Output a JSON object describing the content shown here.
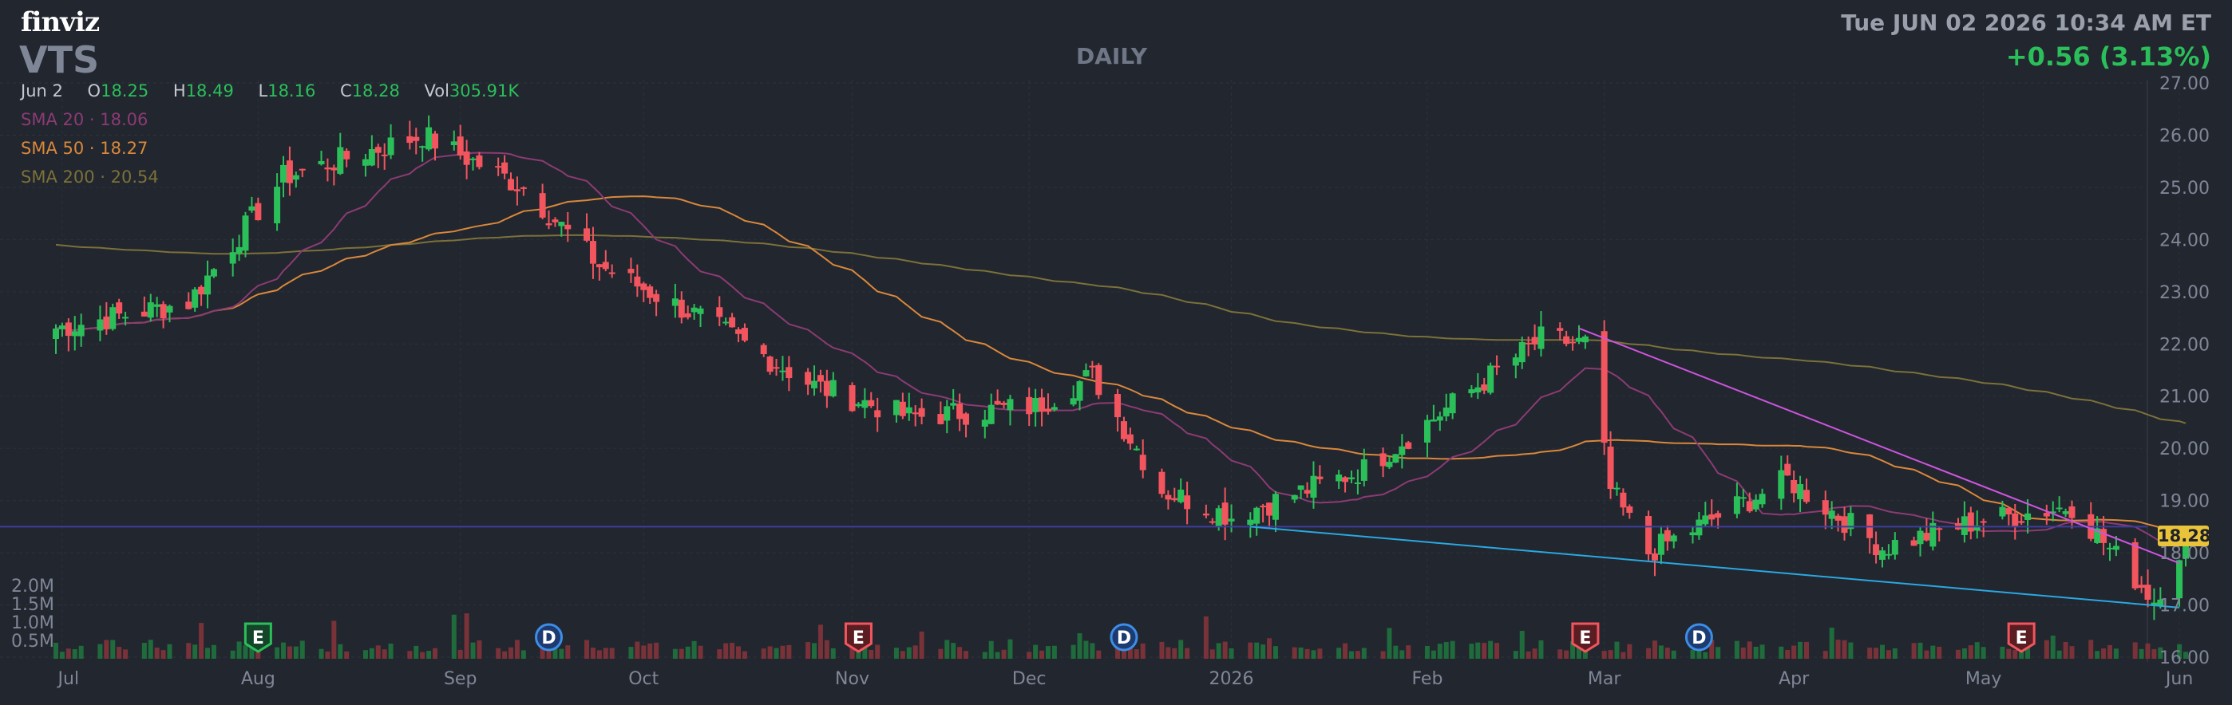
{
  "header": {
    "logo": "finviz",
    "ticker": "VTS",
    "period": "DAILY",
    "datetime": "Tue JUN 02 2026 10:34 AM ET",
    "change": "+0.56 (3.13%)"
  },
  "ohlc": {
    "date": "Jun 2",
    "open_label": "O",
    "open": "18.25",
    "high_label": "H",
    "high": "18.49",
    "low_label": "L",
    "low": "18.16",
    "close_label": "C",
    "close": "18.28",
    "vol_label": "Vol",
    "vol": "305.91K"
  },
  "sma": {
    "sma20": "SMA 20 · 18.06",
    "sma50": "SMA 50 · 18.27",
    "sma200": "SMA 200 · 20.54"
  },
  "price_tag": "18.28",
  "colors": {
    "background": "#22262f",
    "up": "#2bbf5a",
    "down": "#f2555e",
    "sma20": "#8b3b74",
    "sma50": "#d9883b",
    "sma200": "#7b7139",
    "trend_upper": "#cc55dd",
    "trend_lower": "#2aa8e0",
    "hline": "#3c3e9c",
    "price_tag": "#e9c33a"
  },
  "chart_data": {
    "type": "candlestick",
    "ylim": [
      16.0,
      27.0
    ],
    "y_ticks": [
      "27.00",
      "26.00",
      "25.00",
      "24.00",
      "23.00",
      "22.00",
      "21.00",
      "20.00",
      "19.00",
      "18.00",
      "17.00",
      "16.00"
    ],
    "x_tick_labels": [
      "Jul",
      "Aug",
      "Sep",
      "Oct",
      "Nov",
      "Dec",
      "2026",
      "Feb",
      "Mar",
      "Apr",
      "May",
      "Jun"
    ],
    "volume_ticks": [
      "2.0M",
      "1.5M",
      "1.0M",
      "0.5M"
    ],
    "horizontal_line": 18.5,
    "trendlines": [
      {
        "name": "upper",
        "from": {
          "x": "2026-02-26",
          "y": 22.3
        },
        "to": {
          "x": "2026-06-01",
          "y": 17.8
        }
      },
      {
        "name": "lower",
        "from": {
          "x": "2026-01-05",
          "y": 18.5
        },
        "to": {
          "x": "2026-06-01",
          "y": 16.95
        }
      }
    ],
    "events": [
      {
        "x": "2025-08-01",
        "label": "E",
        "kind": "earnings-beat"
      },
      {
        "x": "2025-09-16",
        "label": "D",
        "kind": "dividend"
      },
      {
        "x": "2025-11-04",
        "label": "E",
        "kind": "earnings-miss"
      },
      {
        "x": "2025-12-16",
        "label": "D",
        "kind": "dividend"
      },
      {
        "x": "2026-02-27",
        "label": "E",
        "kind": "earnings-miss"
      },
      {
        "x": "2026-03-17",
        "label": "D",
        "kind": "dividend"
      },
      {
        "x": "2026-05-07",
        "label": "E",
        "kind": "earnings-miss"
      }
    ],
    "key_closes": [
      {
        "x": "2025-06-30",
        "y": 22.3
      },
      {
        "x": "2025-07-21",
        "y": 22.8
      },
      {
        "x": "2025-08-05",
        "y": 25.2
      },
      {
        "x": "2025-08-27",
        "y": 26.0
      },
      {
        "x": "2025-09-12",
        "y": 25.0
      },
      {
        "x": "2025-09-24",
        "y": 23.5
      },
      {
        "x": "2025-10-10",
        "y": 22.5
      },
      {
        "x": "2025-10-28",
        "y": 21.2
      },
      {
        "x": "2025-11-12",
        "y": 20.6
      },
      {
        "x": "2025-12-02",
        "y": 20.8
      },
      {
        "x": "2025-12-11",
        "y": 21.4
      },
      {
        "x": "2025-12-22",
        "y": 19.2
      },
      {
        "x": "2026-01-02",
        "y": 18.7
      },
      {
        "x": "2026-01-23",
        "y": 19.6
      },
      {
        "x": "2026-02-20",
        "y": 22.1
      },
      {
        "x": "2026-02-27",
        "y": 22.0
      },
      {
        "x": "2026-03-03",
        "y": 19.2
      },
      {
        "x": "2026-03-09",
        "y": 18.0
      },
      {
        "x": "2026-03-31",
        "y": 19.4
      },
      {
        "x": "2026-04-15",
        "y": 18.1
      },
      {
        "x": "2026-04-30",
        "y": 18.6
      },
      {
        "x": "2026-05-15",
        "y": 18.9
      },
      {
        "x": "2026-05-28",
        "y": 17.1
      },
      {
        "x": "2026-06-02",
        "y": 18.28
      }
    ]
  }
}
